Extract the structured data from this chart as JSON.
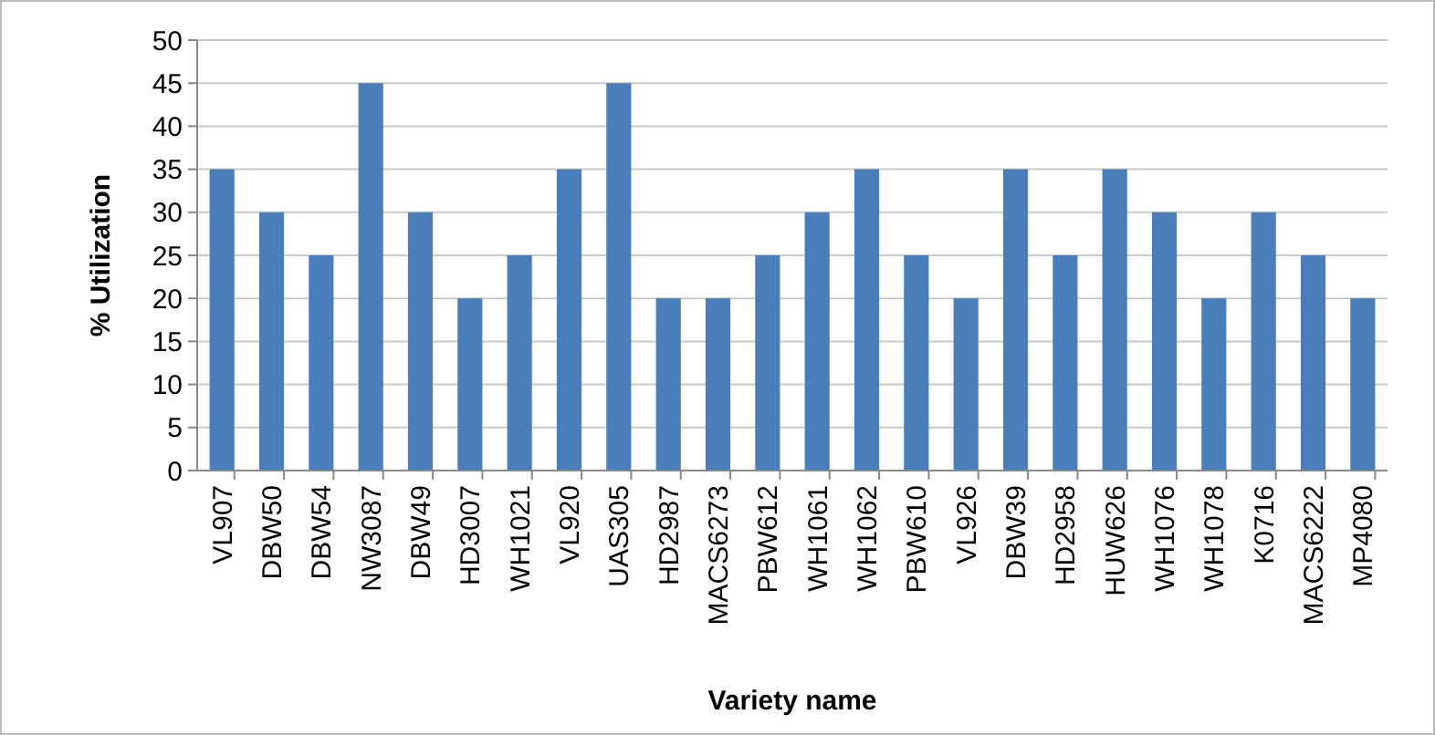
{
  "chart_data": {
    "type": "bar",
    "xlabel": "Variety name",
    "ylabel": "% Utilization",
    "categories": [
      "VL907",
      "DBW50",
      "DBW54",
      "NW3087",
      "DBW49",
      "HD3007",
      "WH1021",
      "VL920",
      "UAS305",
      "HD2987",
      "MACS6273",
      "PBW612",
      "WH1061",
      "WH1062",
      "PBW610",
      "VL926",
      "DBW39",
      "HD2958",
      "HUW626",
      "WH1076",
      "WH1078",
      "K0716",
      "MACS6222",
      "MP4080"
    ],
    "values": [
      35,
      30,
      25,
      45,
      30,
      20,
      25,
      35,
      45,
      20,
      20,
      25,
      30,
      35,
      25,
      20,
      35,
      25,
      35,
      30,
      20,
      30,
      25,
      20
    ],
    "color": "#4a7ebb",
    "ylim": [
      0,
      50
    ],
    "yticks": [
      0,
      5,
      10,
      15,
      20,
      25,
      30,
      35,
      40,
      45,
      50
    ],
    "grid": "y"
  }
}
